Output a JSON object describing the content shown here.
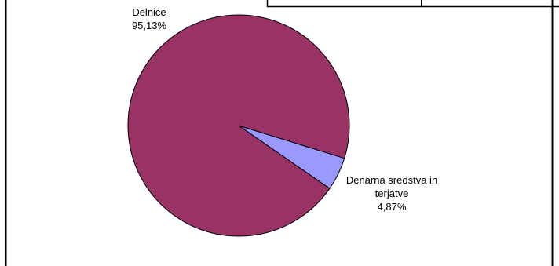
{
  "chart_data": {
    "type": "pie",
    "title": "",
    "legend": "none",
    "slices": [
      {
        "label_lines": [
          "Delnice"
        ],
        "value": 95.13,
        "value_label": "95,13%",
        "color": "#993366"
      },
      {
        "label_lines": [
          "Denarna sredstva in",
          "terjatve"
        ],
        "value": 4.87,
        "value_label": "4,87%",
        "color": "#9999FF"
      }
    ]
  }
}
